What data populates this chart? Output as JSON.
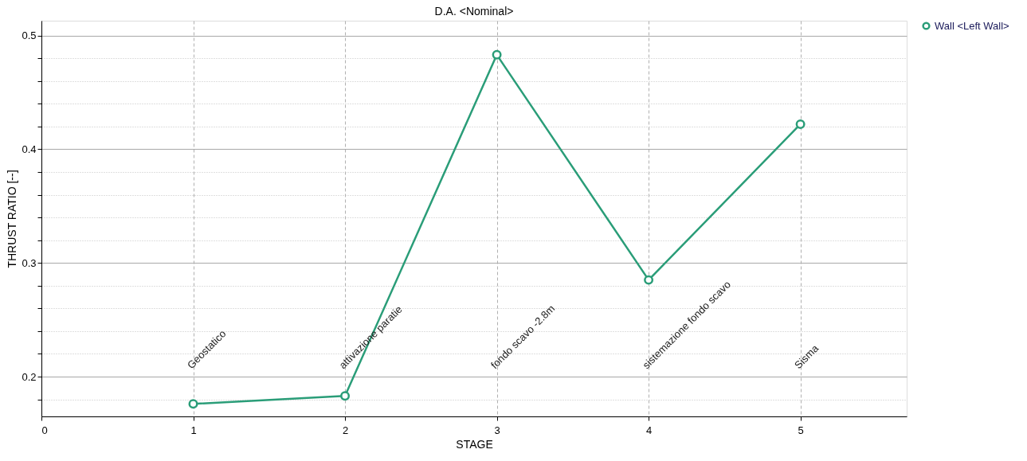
{
  "chart_data": {
    "type": "line",
    "subtitle": "D.A. <Nominal>",
    "xlabel": "STAGE",
    "ylabel": "THRUST RATIO [--]",
    "x": [
      1,
      2,
      3,
      4,
      5
    ],
    "series": [
      {
        "name": "Wall <Left Wall>",
        "color": "#2a9d78",
        "values": [
          0.176,
          0.183,
          0.483,
          0.285,
          0.422
        ]
      }
    ],
    "xlim": [
      0,
      5.7
    ],
    "xticks": [
      0,
      1,
      2,
      3,
      4,
      5
    ],
    "ylim": [
      0.165,
      0.513
    ],
    "yticks": [
      {
        "value": 0.18,
        "label": null
      },
      0.2,
      {
        "value": 0.22,
        "label": null
      },
      {
        "value": 0.24,
        "label": null
      },
      {
        "value": 0.26,
        "label": null
      },
      {
        "value": 0.28,
        "label": null
      },
      0.3,
      {
        "value": 0.32,
        "label": null
      },
      {
        "value": 0.34,
        "label": null
      },
      {
        "value": 0.36,
        "label": null
      },
      {
        "value": 0.38,
        "label": null
      },
      0.4,
      {
        "value": 0.42,
        "label": null
      },
      {
        "value": 0.44,
        "label": null
      },
      {
        "value": 0.46,
        "label": null
      },
      {
        "value": 0.48,
        "label": null
      },
      0.5
    ],
    "annotations": [
      "Geostatico",
      "attivazione paratie",
      "fondo scavo -2.8m",
      "sistemazione fondo scavo",
      "Sisma"
    ],
    "grid": true,
    "legend": "top right",
    "marker": "circle",
    "line_style": "solid"
  }
}
